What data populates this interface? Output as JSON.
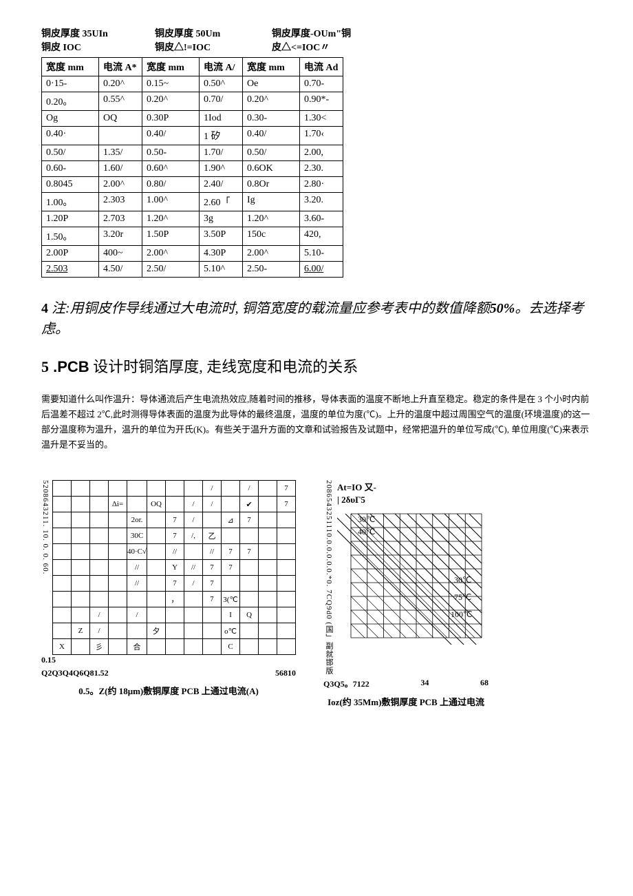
{
  "table_headers": {
    "col1": {
      "line1": "铜皮厚度 35UIn",
      "line2": "铜皮 IOC"
    },
    "col2": {
      "line1": "铜皮厚度 50Um",
      "line2": "铜皮△!=IOC"
    },
    "col3": {
      "line1": "铜皮厚度-OUm\"铜",
      "line2": "皮△<=IOC〃"
    }
  },
  "table": {
    "headers": {
      "w": "宽度 mm",
      "a1": "电流\nA*",
      "a2": "电流\nA/",
      "a3": "电流\nAd"
    },
    "rows": [
      [
        "0·15-",
        "0.20^",
        "0.15~",
        "0.50^",
        "Oe",
        "0.70-"
      ],
      [
        "0.20｡",
        "0.55^",
        "0.20^",
        "0.70/",
        "0.20^",
        "0.90*-"
      ],
      [
        "Og",
        "OQ",
        "0.30P",
        "1Iod",
        "0.30-",
        "1.30<"
      ],
      [
        "0.40·",
        "",
        "0.40/",
        "1 矽",
        "0.40/",
        "1.70‹"
      ],
      [
        "0.50/",
        "1.35/",
        "0.50-",
        "1.70/",
        "0.50/",
        "2.00,"
      ],
      [
        "0.60-",
        "1.60/",
        "0.60^",
        "1.90^",
        "0.6OK",
        "2.30."
      ],
      [
        "0.8045",
        "2.00^",
        "0.80/",
        "2.40/",
        "0.8Or",
        "2.80·"
      ],
      [
        "1.00｡",
        "2.303",
        "1.00^",
        "2.60「",
        "Ig",
        "3.20."
      ],
      [
        "1.20P",
        "2.703",
        "1.20^",
        "3g",
        "1.20^",
        "3.60-"
      ],
      [
        "1.50｡",
        "3.20r",
        "1.50P",
        "3.50P",
        "150c",
        "420,"
      ],
      [
        "2.00P",
        "400~",
        "2.00^",
        "4.30P",
        "2.00^",
        "5.10-"
      ],
      [
        "2.503",
        "4.50/",
        "2.50/",
        "5.10^",
        "2.50-",
        "6.00/"
      ]
    ],
    "underline_cells": [
      [
        11,
        0
      ],
      [
        11,
        5
      ]
    ]
  },
  "note4": {
    "num": "4",
    "text_prefix": " 注:用铜皮作导线通过大电流时, 铜箔宽度的载流量应参考表中的数值降额",
    "bold_pct": "50%",
    "text_suffix": "。去选择考虑。"
  },
  "heading5": {
    "num": "5",
    "pcb": " .PCB",
    "rest": " 设计时铜箔厚度, 走线宽度和电流的关系"
  },
  "body": "需要知道什么叫作温升：导体通流后产生电流热效应,随着时间的推移，导体表面的温度不断地上升直至稳定。稳定的条件是在 3 个小时内前后温差不超过 2℃,此时测得导体表面的温度为此导体的最终温度，温度的单位为度(℃)。上升的温度中超过周围空气的温度(环境温度)的这一部分温度称为温升，温升的单位为开氏(K)。有些关于温升方面的文章和试验报告及试题中，经常把温升的单位写成(℃), 单位用度(℃)来表示温升是不妥当的。",
  "chart1": {
    "ylabel": "5208643211. 10. 0. 0. 60.",
    "yleft_bottom": "0.15",
    "grid": [
      [
        "",
        "",
        "",
        "",
        "",
        "",
        "",
        "",
        "/",
        "",
        "/",
        "",
        "7"
      ],
      [
        "",
        "",
        "",
        "Δi=",
        "",
        "OQ",
        "",
        "/",
        "/",
        "",
        "✔",
        "",
        "7"
      ],
      [
        "",
        "",
        "",
        "",
        "2or.",
        "",
        "7",
        "/",
        "",
        "⊿",
        "7",
        "",
        ""
      ],
      [
        "",
        "",
        "",
        "",
        "30C",
        "",
        "7",
        "/,",
        "乙",
        "",
        "",
        "",
        ""
      ],
      [
        "",
        "",
        "",
        "",
        "40·C√",
        "",
        "//",
        "",
        "//",
        "7",
        "7",
        "",
        ""
      ],
      [
        "",
        "",
        "",
        "",
        "//",
        "",
        "Y",
        "//",
        "7",
        "7",
        "",
        "",
        ""
      ],
      [
        "",
        "",
        "",
        "",
        "//",
        "",
        "7",
        "/",
        "7",
        "",
        "",
        "",
        ""
      ],
      [
        "",
        "",
        "",
        "",
        "",
        "",
        "，",
        "",
        "7",
        "3(℃",
        "",
        "",
        ""
      ],
      [
        "",
        "",
        "/",
        "",
        "/",
        "",
        "",
        "",
        "",
        "I",
        "Q",
        "",
        ""
      ],
      [
        "",
        "Z",
        "/",
        "",
        "",
        "夕",
        "",
        "",
        "",
        "o℃",
        "",
        "",
        ""
      ],
      [
        "X",
        "",
        "彡",
        "",
        "合",
        "",
        "",
        "",
        "",
        "C",
        "",
        "",
        ""
      ]
    ],
    "xaxis_left": "Q2Q3Q4Q6Q81.52",
    "xaxis_right": "56810",
    "caption": "0.5。Z(约 18μm)敷铜厚度 PCB 上通过电流(A)"
  },
  "chart2": {
    "ylabel": "2086543251110.0.0.0.0.0.*0.  7CQ9d0",
    "ylabel_cn": "(国」副就邯版",
    "title_top": "At=IO 又-",
    "title_sub": "| 2δυΓ5",
    "temp_labels": [
      "30℃",
      "40℃",
      "30℃",
      "75℃",
      "100℃"
    ],
    "grid_color": "#000000",
    "background": "#ffffff",
    "xaxis": "Q3Q5。7122",
    "xaxis_mid": "34",
    "xaxis_right": "68",
    "caption": "Ioz(约 35Mm)敷铜厚度 PCB 上通过电流"
  }
}
